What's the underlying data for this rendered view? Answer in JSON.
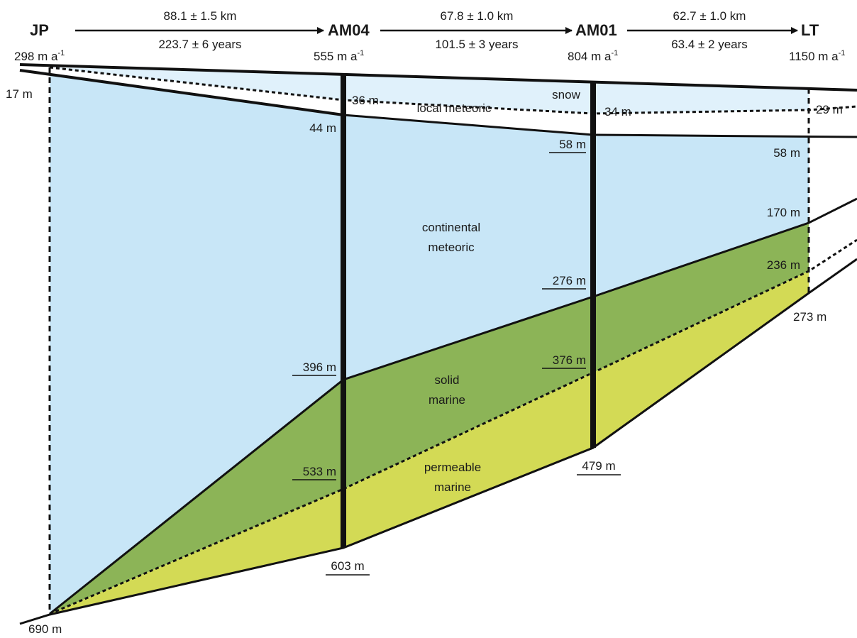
{
  "colors": {
    "continental_meteoric": "#c8e6f7",
    "snow": "#e0f1fb",
    "local_meteoric": "#ffffff",
    "solid_marine": "#8cb457",
    "permeable_marine": "#d3da55",
    "line": "#111111"
  },
  "stations": [
    {
      "name": "JP",
      "rate": "298 m a",
      "rate_sup": "-1"
    },
    {
      "name": "AM04",
      "rate": "555 m a",
      "rate_sup": "-1"
    },
    {
      "name": "AM01",
      "rate": "804 m a",
      "rate_sup": "-1"
    },
    {
      "name": "LT",
      "rate": "1150 m a",
      "rate_sup": "-1"
    }
  ],
  "segments": [
    {
      "distance": "88.1 ± 1.5 km",
      "time": "223.7 ± 6 years"
    },
    {
      "distance": "67.8 ± 1.0 km",
      "time": "101.5 ± 3 years"
    },
    {
      "distance": "62.7 ± 1.0 km",
      "time": "63.4 ± 2 years"
    }
  ],
  "layers": {
    "snow": "snow",
    "local_meteoric": "local meteoric",
    "continental_meteoric": [
      "continental",
      "meteoric"
    ],
    "solid_marine": [
      "solid",
      "marine"
    ],
    "permeable_marine": [
      "permeable",
      "marine"
    ]
  },
  "depths": {
    "jp_snow": "17 m",
    "jp_bottom": "690 m",
    "am04_snow": "36 m",
    "am04_local": "44 m",
    "am04_solid": "396 m",
    "am04_permeable": "533 m",
    "am04_bottom": "603 m",
    "am01_snow": "34 m",
    "am01_local": "58 m",
    "am01_solid": "276 m",
    "am01_permeable": "376 m",
    "am01_bottom": "479 m",
    "lt_snow": "29 m",
    "lt_local": "58 m",
    "lt_solid": "170 m",
    "lt_permeable": "236 m",
    "lt_bottom": "273 m"
  }
}
